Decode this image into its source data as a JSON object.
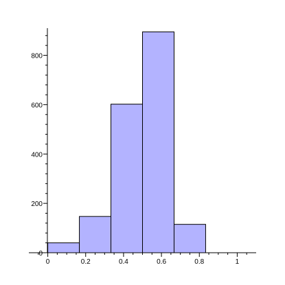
{
  "chart_data": {
    "type": "bar",
    "title": "",
    "xlabel": "",
    "ylabel": "",
    "bins": [
      {
        "x0": 0.0,
        "x1": 0.1667,
        "value": 40
      },
      {
        "x0": 0.1667,
        "x1": 0.3333,
        "value": 147
      },
      {
        "x0": 0.3333,
        "x1": 0.5,
        "value": 602
      },
      {
        "x0": 0.5,
        "x1": 0.6667,
        "value": 895
      },
      {
        "x0": 0.6667,
        "x1": 0.8333,
        "value": 115
      }
    ],
    "xlim": [
      -0.1,
      1.1
    ],
    "ylim": [
      0,
      910
    ],
    "x_ticks": [
      {
        "value": 0,
        "label": "0"
      },
      {
        "value": 0.2,
        "label": "0.2"
      },
      {
        "value": 0.4,
        "label": "0.4"
      },
      {
        "value": 0.6,
        "label": "0.6"
      },
      {
        "value": 0.8,
        "label": "0.8"
      },
      {
        "value": 1,
        "label": "1"
      }
    ],
    "y_ticks": [
      {
        "value": 0,
        "label": "0"
      },
      {
        "value": 200,
        "label": "200"
      },
      {
        "value": 400,
        "label": "400"
      },
      {
        "value": 600,
        "label": "600"
      },
      {
        "value": 800,
        "label": "800"
      }
    ],
    "x_minor_step": 0.05,
    "y_minor_step": 40,
    "grid": false,
    "colors": {
      "bar_fill": "#b3b3ff",
      "bar_stroke": "#000000",
      "axis": "#000000"
    }
  }
}
